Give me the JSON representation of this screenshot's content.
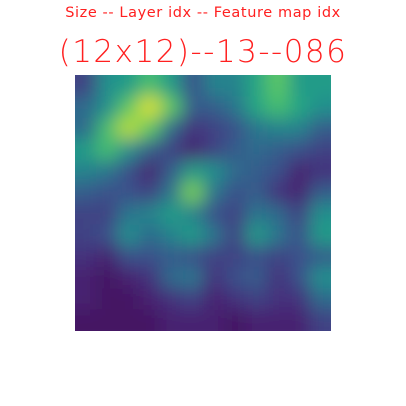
{
  "caption": {
    "header": "Size -- Layer idx -- Feature map idx",
    "title": "(12x12)--13--086"
  },
  "colormap": "viridis",
  "text_color": "#ff2020",
  "chart_data": {
    "type": "heatmap",
    "rows": 12,
    "cols": 12,
    "value_range": [
      0,
      1
    ],
    "values": [
      [
        0.2,
        0.5,
        0.55,
        0.7,
        0.55,
        0.25,
        0.45,
        0.45,
        0.6,
        0.75,
        0.55,
        0.55
      ],
      [
        0.35,
        0.5,
        0.75,
        0.95,
        0.75,
        0.3,
        0.3,
        0.4,
        0.6,
        0.7,
        0.6,
        0.5
      ],
      [
        0.35,
        0.7,
        0.9,
        0.75,
        0.35,
        0.15,
        0.2,
        0.25,
        0.4,
        0.45,
        0.45,
        0.3
      ],
      [
        0.55,
        0.7,
        0.5,
        0.3,
        0.2,
        0.1,
        0.2,
        0.3,
        0.35,
        0.3,
        0.25,
        0.2
      ],
      [
        0.45,
        0.4,
        0.25,
        0.1,
        0.3,
        0.55,
        0.5,
        0.35,
        0.3,
        0.25,
        0.1,
        0.15
      ],
      [
        0.3,
        0.25,
        0.25,
        0.2,
        0.4,
        0.8,
        0.4,
        0.25,
        0.3,
        0.15,
        0.1,
        0.3
      ],
      [
        0.2,
        0.2,
        0.4,
        0.45,
        0.55,
        0.45,
        0.25,
        0.2,
        0.4,
        0.35,
        0.2,
        0.5
      ],
      [
        0.2,
        0.25,
        0.5,
        0.35,
        0.45,
        0.55,
        0.4,
        0.2,
        0.55,
        0.4,
        0.25,
        0.55
      ],
      [
        0.15,
        0.1,
        0.25,
        0.25,
        0.3,
        0.25,
        0.2,
        0.2,
        0.25,
        0.2,
        0.25,
        0.3
      ],
      [
        0.1,
        0.05,
        0.1,
        0.15,
        0.35,
        0.4,
        0.15,
        0.25,
        0.3,
        0.15,
        0.25,
        0.5
      ],
      [
        0.1,
        0.05,
        0.05,
        0.1,
        0.15,
        0.2,
        0.1,
        0.15,
        0.2,
        0.15,
        0.15,
        0.35
      ],
      [
        0.05,
        0.05,
        0.05,
        0.05,
        0.1,
        0.1,
        0.1,
        0.05,
        0.1,
        0.1,
        0.1,
        0.2
      ]
    ]
  }
}
